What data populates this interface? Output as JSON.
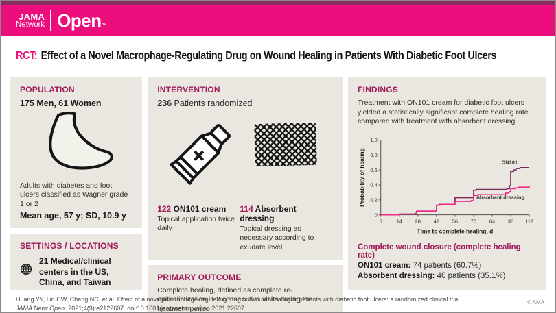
{
  "header": {
    "logo_jama": "JAMA",
    "logo_network": "Network",
    "logo_open": "Open",
    "logo_tm": "™"
  },
  "title": {
    "tag": "RCT:",
    "text": "Effect of a Novel Macrophage-Regulating Drug on Wound Healing in Patients With Diabetic Foot Ulcers"
  },
  "population": {
    "heading": "POPULATION",
    "subjects": "175 Men, 61 Women",
    "icon": "foot-outline-icon",
    "description": "Adults with diabetes and foot ulcers classified as Wagner grade 1 or 2",
    "mean_age": "Mean age, 57 y; SD, 10.9 y"
  },
  "settings": {
    "heading": "SETTINGS / LOCATIONS",
    "icon": "globe-icon",
    "text": "21 Medical/clinical centers in the US, China, and Taiwan"
  },
  "intervention": {
    "heading": "INTERVENTION",
    "randomized_count": "236",
    "randomized_label": "Patients randomized",
    "arms": [
      {
        "count": "122",
        "name": "ON101 cream",
        "description": "Topical application twice daily",
        "icon": "cream-tube-icon"
      },
      {
        "count": "114",
        "name": "Absorbent dressing",
        "description": "Topical dressing as necessary according to exudate level",
        "icon": "dressing-mesh-icon"
      }
    ]
  },
  "primary_outcome": {
    "heading": "PRIMARY OUTCOME",
    "text": "Complete healing, defined as complete re-epithelialization in 2 consecutive visits during the treatment period"
  },
  "findings": {
    "heading": "FINDINGS",
    "summary": "Treatment with ON101 cream for diabetic foot ulcers yielded a statistically significant complete healing rate compared with treatment with absorbent dressing",
    "results_heading": "Complete wound closure (complete healing rate)",
    "results": [
      {
        "label": "ON101 cream:",
        "value": "74 patients (60.7%)"
      },
      {
        "label": "Absorbent dressing:",
        "value": "40 patients (35.1%)"
      }
    ]
  },
  "chart_data": {
    "type": "line",
    "subtype": "step",
    "title": "",
    "xlabel": "Time to complete healing, d",
    "ylabel": "Probability of healing",
    "xlim": [
      0,
      112
    ],
    "ylim": [
      0,
      1.0
    ],
    "xticks": [
      0,
      14,
      28,
      42,
      56,
      70,
      84,
      98,
      112
    ],
    "yticks": [
      0,
      0.2,
      0.4,
      0.6,
      0.8,
      1.0
    ],
    "grid": false,
    "legend_position": "inline-annotations",
    "series": [
      {
        "name": "ON101",
        "color": "#7D2B5E",
        "label_pos": [
          91,
          0.68
        ],
        "points": [
          [
            0,
            0
          ],
          [
            13,
            0
          ],
          [
            14,
            0.01
          ],
          [
            25,
            0.01
          ],
          [
            26,
            0.02
          ],
          [
            27,
            0.05
          ],
          [
            41,
            0.05
          ],
          [
            42,
            0.13
          ],
          [
            44,
            0.14
          ],
          [
            55,
            0.14
          ],
          [
            56,
            0.23
          ],
          [
            69,
            0.23
          ],
          [
            70,
            0.33
          ],
          [
            72,
            0.34
          ],
          [
            94,
            0.34
          ],
          [
            95,
            0.35
          ],
          [
            97,
            0.39
          ],
          [
            98,
            0.58
          ],
          [
            100,
            0.6
          ],
          [
            102,
            0.62
          ],
          [
            105,
            0.63
          ],
          [
            112,
            0.63
          ]
        ]
      },
      {
        "name": "Absorbent dressing",
        "color": "#EE2E87",
        "label_pos": [
          72,
          0.21
        ],
        "points": [
          [
            0,
            0
          ],
          [
            13,
            0
          ],
          [
            14,
            0.01
          ],
          [
            26,
            0.01
          ],
          [
            27,
            0.05
          ],
          [
            41,
            0.05
          ],
          [
            42,
            0.13
          ],
          [
            45,
            0.14
          ],
          [
            55,
            0.14
          ],
          [
            56,
            0.18
          ],
          [
            67,
            0.18
          ],
          [
            68,
            0.19
          ],
          [
            69,
            0.19
          ],
          [
            70,
            0.26
          ],
          [
            73,
            0.27
          ],
          [
            92,
            0.27
          ],
          [
            94,
            0.29
          ],
          [
            96,
            0.3
          ],
          [
            97,
            0.31
          ],
          [
            98,
            0.35
          ],
          [
            101,
            0.36
          ],
          [
            104,
            0.37
          ],
          [
            112,
            0.38
          ]
        ]
      }
    ]
  },
  "footer": {
    "citation_line1": "Huang YY, Lin CW, Cheng NC, et al. Effect of a novel macrophage-regulating drug on wound healing in patients with diabetic foot ulcers: a randomized clinical trial.",
    "citation_journal": "JAMA Netw Open",
    "citation_line2_rest": ". 2021;4(9):e2122607. doi:10.1001/jamanetworkopen.2021.22607",
    "copyright": "© AMA"
  },
  "colors": {
    "brand_pink": "#ED0E7D",
    "brand_dark_strip": "#8C2A62",
    "heading_magenta": "#A01A5B",
    "panel_bg": "#E9E7E0",
    "series_on101": "#7D2B5E",
    "series_absorbent": "#EE2E87"
  }
}
